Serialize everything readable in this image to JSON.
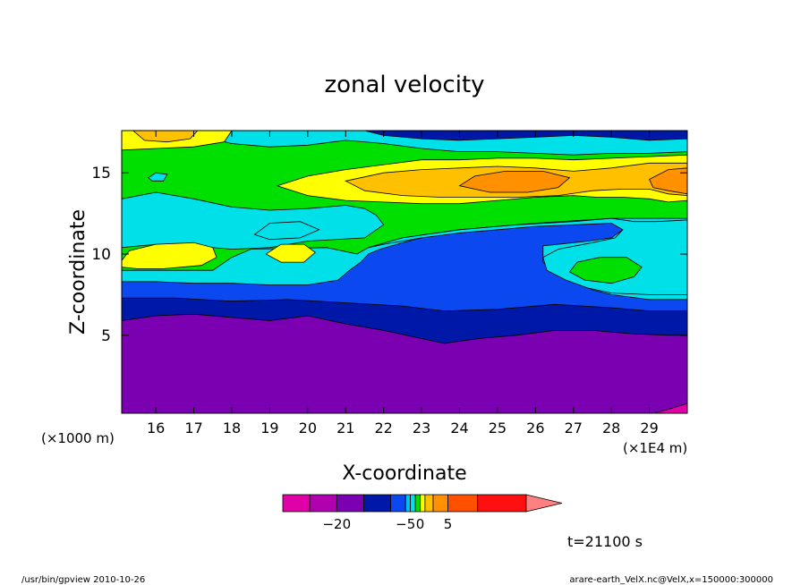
{
  "chart_data": {
    "type": "heatmap",
    "title": "zonal velocity",
    "xlabel": "X-coordinate",
    "ylabel": "Z-coordinate",
    "x_unit_label": "(×1E4 m)",
    "y_unit_label": "(×1000 m)",
    "xlim": [
      15.1,
      30.0
    ],
    "ylim": [
      0.2,
      17.6
    ],
    "x_ticks": [
      "16",
      "17",
      "18",
      "19",
      "20",
      "21",
      "22",
      "23",
      "24",
      "25",
      "26",
      "27",
      "28",
      "29"
    ],
    "y_ticks": [
      "5",
      "10",
      "15"
    ],
    "time_label": "t=21100 s",
    "colorbar": {
      "tick_labels": [
        {
          "label": "−20",
          "value": -20
        },
        {
          "label": "−5",
          "value": -5
        },
        {
          "label": "0",
          "value": 0
        },
        {
          "label": "5",
          "value": 5
        }
      ],
      "levels": [
        {
          "range": [
            -30,
            -25
          ],
          "color": "#e000a8"
        },
        {
          "range": [
            -25,
            -20
          ],
          "color": "#b000b0"
        },
        {
          "range": [
            -20,
            -15
          ],
          "color": "#7a00b2"
        },
        {
          "range": [
            -15,
            -10
          ],
          "color": "#0018a8"
        },
        {
          "range": [
            -10,
            -5
          ],
          "color": "#0c48f0"
        },
        {
          "range": [
            -5,
            -3
          ],
          "color": "#00c0f0"
        },
        {
          "range": [
            -3,
            -1
          ],
          "color": "#00e0e8"
        },
        {
          "range": [
            -1,
            0
          ],
          "color": "#00e000"
        },
        {
          "range": [
            0,
            1
          ],
          "color": "#ffff00"
        },
        {
          "range": [
            1,
            3
          ],
          "color": "#ffc000"
        },
        {
          "range": [
            3,
            5
          ],
          "color": "#ff9000"
        },
        {
          "range": [
            5,
            10
          ],
          "color": "#ff5000"
        },
        {
          "range": [
            10,
            20
          ],
          "color": "#ff1010"
        },
        {
          "range": [
            20,
            30
          ],
          "color": "#ff8080"
        }
      ]
    },
    "layers": [
      {
        "name": "magenta-corner",
        "value_range": "< -25",
        "color": "#e000a8",
        "polygon": [
          [
            29.1,
            0.2
          ],
          [
            30.0,
            0.2
          ],
          [
            30.0,
            0.8
          ],
          [
            29.5,
            0.45
          ]
        ]
      },
      {
        "name": "upper-boundary-purple",
        "value_range": "-20 to -15",
        "color": "#7a00b2",
        "top": [
          [
            15.1,
            5.9
          ],
          [
            16.0,
            6.2
          ],
          [
            17.0,
            6.3
          ],
          [
            18.0,
            6.1
          ],
          [
            19.0,
            5.9
          ],
          [
            20.0,
            6.2
          ],
          [
            21.0,
            5.7
          ],
          [
            22.0,
            5.3
          ],
          [
            23.0,
            4.8
          ],
          [
            23.6,
            4.5
          ],
          [
            24.5,
            4.8
          ],
          [
            25.5,
            5.0
          ],
          [
            26.5,
            5.3
          ],
          [
            27.5,
            5.3
          ],
          [
            28.5,
            5.1
          ],
          [
            29.5,
            5.0
          ],
          [
            30.0,
            5.0
          ]
        ]
      },
      {
        "name": "upper-boundary-navy",
        "value_range": "-15 to -10",
        "color": "#0018a8",
        "top": [
          [
            15.1,
            7.3
          ],
          [
            16.5,
            7.3
          ],
          [
            18.0,
            7.1
          ],
          [
            19.5,
            7.2
          ],
          [
            21.0,
            7.0
          ],
          [
            22.5,
            6.8
          ],
          [
            23.6,
            6.5
          ],
          [
            25.0,
            6.6
          ],
          [
            26.5,
            6.9
          ],
          [
            28.0,
            6.7
          ],
          [
            29.0,
            6.5
          ],
          [
            30.0,
            6.5
          ]
        ]
      },
      {
        "name": "upper-boundary-blue",
        "value_range": "-10 to -5",
        "color": "#0c48f0",
        "top": [
          [
            15.1,
            8.3
          ],
          [
            16.0,
            8.3
          ],
          [
            17.0,
            8.2
          ],
          [
            18.0,
            8.2
          ],
          [
            19.0,
            8.1
          ],
          [
            20.0,
            8.1
          ],
          [
            20.8,
            8.4
          ],
          [
            21.1,
            9.0
          ],
          [
            21.4,
            9.5
          ],
          [
            21.6,
            10.0
          ],
          [
            21.9,
            10.3
          ],
          [
            22.5,
            10.7
          ],
          [
            23.0,
            11.0
          ],
          [
            24.0,
            11.3
          ],
          [
            25.0,
            11.5
          ],
          [
            26.0,
            11.7
          ],
          [
            27.0,
            11.8
          ],
          [
            28.0,
            11.9
          ],
          [
            28.3,
            11.5
          ],
          [
            28.0,
            11.0
          ],
          [
            27.4,
            10.8
          ],
          [
            27.0,
            10.7
          ],
          [
            26.2,
            10.5
          ],
          [
            26.2,
            9.5
          ],
          [
            26.6,
            8.8
          ],
          [
            27.0,
            8.3
          ],
          [
            27.5,
            7.8
          ],
          [
            28.0,
            7.5
          ],
          [
            29.0,
            7.2
          ],
          [
            30.0,
            7.2
          ]
        ]
      }
    ],
    "regions": [
      {
        "name": "cyan-middle-right",
        "value_range": "-5 to -1",
        "color": "#00e0e8",
        "polygon": [
          [
            21.6,
            10.4
          ],
          [
            22.5,
            11.0
          ],
          [
            24.0,
            11.5
          ],
          [
            25.5,
            11.8
          ],
          [
            27.0,
            12.0
          ],
          [
            28.0,
            12.2
          ],
          [
            28.6,
            12.0
          ],
          [
            29.2,
            12.0
          ],
          [
            30.0,
            12.1
          ],
          [
            30.0,
            7.5
          ],
          [
            29.0,
            7.5
          ],
          [
            28.0,
            7.6
          ],
          [
            27.4,
            7.9
          ],
          [
            26.8,
            8.4
          ],
          [
            26.3,
            9.0
          ],
          [
            26.2,
            9.8
          ],
          [
            26.6,
            10.3
          ],
          [
            27.5,
            10.7
          ],
          [
            28.1,
            11.0
          ],
          [
            28.3,
            11.5
          ],
          [
            28.0,
            11.9
          ],
          [
            27.0,
            11.8
          ],
          [
            26.0,
            11.7
          ],
          [
            25.0,
            11.5
          ],
          [
            24.0,
            11.3
          ],
          [
            23.0,
            11.0
          ],
          [
            22.0,
            10.6
          ]
        ]
      },
      {
        "name": "green-pocket-right",
        "value_range": "-1 to 0",
        "color": "#00e000",
        "polygon": [
          [
            26.9,
            8.9
          ],
          [
            27.3,
            8.4
          ],
          [
            28.0,
            8.2
          ],
          [
            28.6,
            8.6
          ],
          [
            28.8,
            9.2
          ],
          [
            28.4,
            9.8
          ],
          [
            27.7,
            9.8
          ],
          [
            27.1,
            9.5
          ]
        ]
      }
    ]
  },
  "footer_left": "/usr/bin/gpview   2010-10-26",
  "footer_right": "arare-earth_VelX.nc@VelX,x=150000:300000"
}
